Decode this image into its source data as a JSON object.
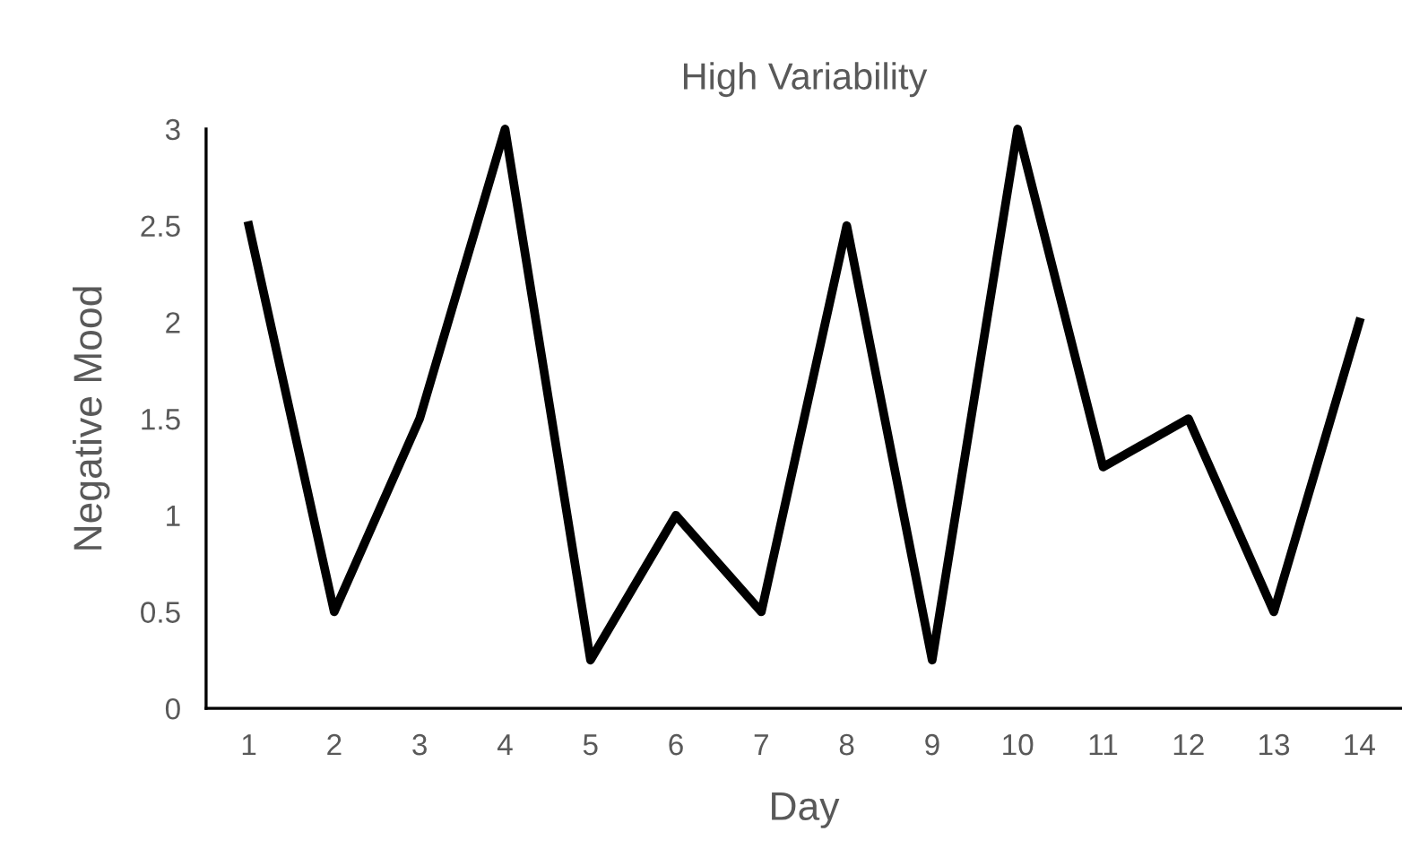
{
  "chart_data": {
    "type": "line",
    "title": "High Variability",
    "xlabel": "Day",
    "ylabel": "Negative Mood",
    "categories": [
      "1",
      "2",
      "3",
      "4",
      "5",
      "6",
      "7",
      "8",
      "9",
      "10",
      "11",
      "12",
      "13",
      "14"
    ],
    "series": [
      {
        "color": "#000000",
        "values": [
          2.5,
          0.5,
          1.5,
          3,
          0.25,
          1,
          0.5,
          2.5,
          0.25,
          3,
          1.25,
          1.5,
          0.5,
          2
        ]
      }
    ],
    "ylim": [
      0,
      3
    ],
    "yticks": [
      0,
      0.5,
      1,
      1.5,
      2,
      2.5,
      3
    ],
    "grid": false,
    "marker": "none",
    "line_style": "solid"
  }
}
